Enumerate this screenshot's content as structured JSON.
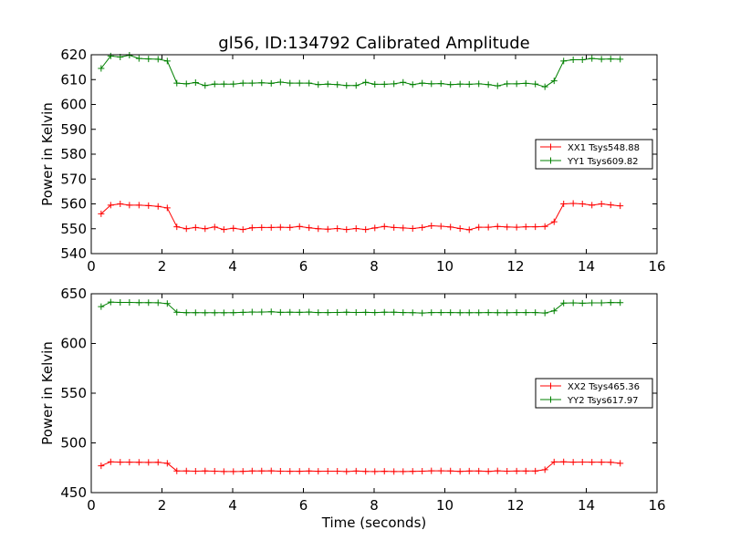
{
  "figure": {
    "title": "gl56, ID:134792 Calibrated Amplitude",
    "xlabel": "Time (seconds)"
  },
  "chart_data": [
    {
      "type": "line",
      "title": "gl56, ID:134792 Calibrated Amplitude",
      "xlabel": "",
      "ylabel": "Power in Kelvin",
      "xlim": [
        0,
        16
      ],
      "ylim": [
        540,
        620
      ],
      "xticks": [
        "0",
        "2",
        "4",
        "6",
        "8",
        "10",
        "12",
        "14",
        "16"
      ],
      "yticks": [
        "540",
        "550",
        "560",
        "570",
        "580",
        "590",
        "600",
        "610",
        "620"
      ],
      "grid": false,
      "legend": "center-right",
      "x": [
        0.28,
        0.55,
        0.82,
        1.08,
        1.35,
        1.62,
        1.89,
        2.15,
        2.42,
        2.69,
        2.95,
        3.22,
        3.49,
        3.75,
        4.02,
        4.29,
        4.55,
        4.82,
        5.09,
        5.35,
        5.62,
        5.89,
        6.16,
        6.42,
        6.69,
        6.96,
        7.22,
        7.49,
        7.76,
        8.02,
        8.29,
        8.56,
        8.82,
        9.09,
        9.36,
        9.62,
        9.89,
        10.16,
        10.43,
        10.69,
        10.96,
        11.23,
        11.49,
        11.76,
        12.03,
        12.29,
        12.56,
        12.83,
        13.09,
        13.36,
        13.63,
        13.89,
        14.16,
        14.43,
        14.69,
        14.96
      ],
      "series": [
        {
          "name": "XX1 Tsys548.88",
          "color": "#ff0000",
          "values": [
            556,
            559.5,
            560,
            559.5,
            559.5,
            559.3,
            559,
            558.4,
            550.8,
            550,
            550.5,
            550,
            550.7,
            549.7,
            550.2,
            549.7,
            550.4,
            550.5,
            550.5,
            550.6,
            550.5,
            550.9,
            550.4,
            550,
            549.8,
            550.1,
            549.7,
            550.1,
            549.7,
            550.3,
            550.9,
            550.5,
            550.3,
            550.1,
            550.5,
            551.2,
            551,
            550.7,
            550.1,
            549.6,
            550.6,
            550.6,
            550.9,
            550.7,
            550.6,
            550.8,
            550.8,
            550.9,
            552.8,
            560,
            560.2,
            560,
            559.5,
            560,
            559.6,
            559.2
          ]
        },
        {
          "name": "YY1 Tsys609.82",
          "color": "#008000",
          "values": [
            614.5,
            619.5,
            619.1,
            619.8,
            618.5,
            618.3,
            618.2,
            617.5,
            608.6,
            608.3,
            608.8,
            607.6,
            608.2,
            608.2,
            608.2,
            608.6,
            608.6,
            608.7,
            608.5,
            609,
            608.6,
            608.6,
            608.6,
            608,
            608.2,
            608,
            607.6,
            607.6,
            608.9,
            608.1,
            608.1,
            608.3,
            608.9,
            608,
            608.6,
            608.3,
            608.4,
            608,
            608.2,
            608.1,
            608.3,
            608,
            607.5,
            608.3,
            608.3,
            608.5,
            608.2,
            607.1,
            609.5,
            617.5,
            618,
            618,
            618.5,
            618.2,
            618.3,
            618.2
          ]
        }
      ]
    },
    {
      "type": "line",
      "title": "",
      "xlabel": "Time (seconds)",
      "ylabel": "Power in Kelvin",
      "xlim": [
        0,
        16
      ],
      "ylim": [
        450,
        650
      ],
      "xticks": [
        "0",
        "2",
        "4",
        "6",
        "8",
        "10",
        "12",
        "14",
        "16"
      ],
      "yticks": [
        "450",
        "500",
        "550",
        "600",
        "650"
      ],
      "grid": false,
      "legend": "center-right",
      "x": [
        0.28,
        0.55,
        0.82,
        1.08,
        1.35,
        1.62,
        1.89,
        2.15,
        2.42,
        2.69,
        2.95,
        3.22,
        3.49,
        3.75,
        4.02,
        4.29,
        4.55,
        4.82,
        5.09,
        5.35,
        5.62,
        5.89,
        6.16,
        6.42,
        6.69,
        6.96,
        7.22,
        7.49,
        7.76,
        8.02,
        8.29,
        8.56,
        8.82,
        9.09,
        9.36,
        9.62,
        9.89,
        10.16,
        10.43,
        10.69,
        10.96,
        11.23,
        11.49,
        11.76,
        12.03,
        12.29,
        12.56,
        12.83,
        13.09,
        13.36,
        13.63,
        13.89,
        14.16,
        14.43,
        14.69,
        14.96
      ],
      "series": [
        {
          "name": "XX2 Tsys465.36",
          "color": "#ff0000",
          "values": [
            477,
            481,
            480.6,
            480.6,
            480.5,
            480.4,
            480.5,
            479.5,
            471.8,
            471.8,
            471.6,
            471.8,
            471.6,
            471.2,
            471.2,
            471.4,
            471.8,
            471.8,
            471.9,
            471.6,
            471.5,
            471.5,
            471.7,
            471.5,
            471.6,
            471.6,
            471.2,
            471.7,
            471.3,
            471.2,
            471.5,
            471.2,
            471.2,
            471.4,
            471.6,
            471.9,
            471.9,
            471.8,
            471.3,
            471.7,
            471.7,
            471.3,
            471.9,
            471.6,
            471.7,
            471.7,
            471.7,
            473,
            480.8,
            481,
            480.6,
            480.7,
            480.6,
            480.6,
            480.5,
            479.5
          ]
        },
        {
          "name": "YY2 Tsys617.97",
          "color": "#008000",
          "values": [
            637,
            641.6,
            641.3,
            641.3,
            641.1,
            641.1,
            640.9,
            640.1,
            631.4,
            631,
            631,
            630.9,
            630.9,
            630.9,
            631,
            631.3,
            631.6,
            631.6,
            631.9,
            631.3,
            631.4,
            631.3,
            631.6,
            631.1,
            631.1,
            631.2,
            631.4,
            631.2,
            631.3,
            631.1,
            631.4,
            631.4,
            631.1,
            631,
            630.6,
            631.1,
            631.1,
            631.1,
            631,
            631,
            631,
            631.1,
            631,
            631,
            631.1,
            631.1,
            631.1,
            630.6,
            632.8,
            640.6,
            640.8,
            640.5,
            640.8,
            640.8,
            641.2,
            641.1
          ]
        }
      ]
    }
  ]
}
